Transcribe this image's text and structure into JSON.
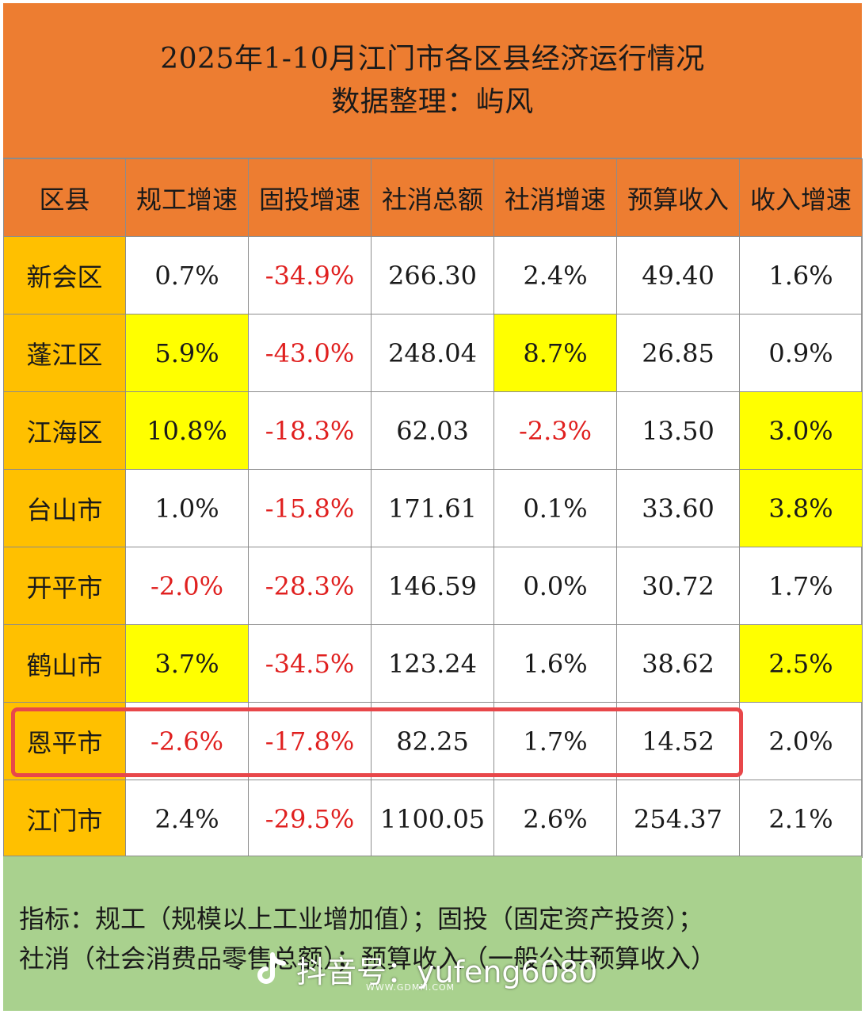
{
  "title": {
    "line1": "2025年1-10月江门市各区县经济运行情况",
    "line2": "数据整理：屿风"
  },
  "table": {
    "headers": [
      "区县",
      "规工增速",
      "固投增速",
      "社消总额",
      "社消增速",
      "预算收入",
      "收入增速"
    ],
    "rows": [
      {
        "district": "新会区",
        "cells": [
          "0.7%",
          "-34.9%",
          "266.30",
          "2.4%",
          "49.40",
          "1.6%"
        ]
      },
      {
        "district": "蓬江区",
        "cells": [
          "5.9%",
          "-43.0%",
          "248.04",
          "8.7%",
          "26.85",
          "0.9%"
        ]
      },
      {
        "district": "江海区",
        "cells": [
          "10.8%",
          "-18.3%",
          "62.03",
          "-2.3%",
          "13.50",
          "3.0%"
        ]
      },
      {
        "district": "台山市",
        "cells": [
          "1.0%",
          "-15.8%",
          "171.61",
          "0.1%",
          "33.60",
          "3.8%"
        ]
      },
      {
        "district": "开平市",
        "cells": [
          "-2.0%",
          "-28.3%",
          "146.59",
          "0.0%",
          "30.72",
          "1.7%"
        ]
      },
      {
        "district": "鹤山市",
        "cells": [
          "3.7%",
          "-34.5%",
          "123.24",
          "1.6%",
          "38.62",
          "2.5%"
        ]
      },
      {
        "district": "恩平市",
        "cells": [
          "-2.6%",
          "-17.8%",
          "82.25",
          "1.7%",
          "14.52",
          "2.0%"
        ]
      },
      {
        "district": "江门市",
        "cells": [
          "2.4%",
          "-29.5%",
          "1100.05",
          "2.6%",
          "254.37",
          "2.1%"
        ]
      }
    ]
  },
  "footer": {
    "line1": "指标：规工（规模以上工业增加值）；固投（固定资产投资）；",
    "line2": "社消（社会消费品零售总额）；预算收入（一般公共预算收入）"
  },
  "watermark": {
    "icon": "douyin-logo-icon",
    "text": "抖音号：yufeng6080",
    "site": "WWW.GDMM.COM"
  },
  "colors": {
    "header": "#ed7d31",
    "district": "#ffc000",
    "highlight": "#ffff00",
    "negative": "#e0201f",
    "footer": "#a9d18e",
    "frame": "#e8474a"
  }
}
